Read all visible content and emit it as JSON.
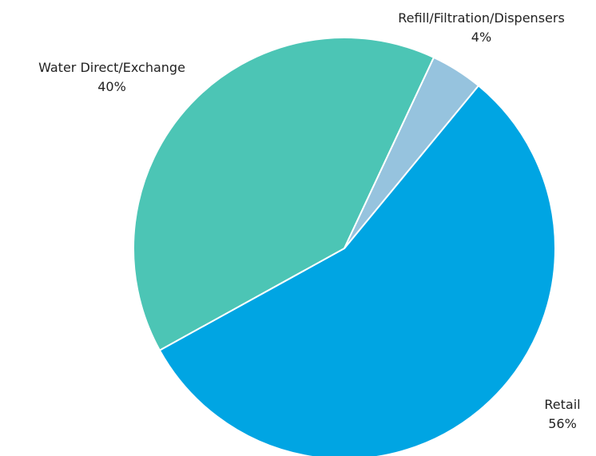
{
  "chart_data": {
    "type": "pie",
    "title": "",
    "slices": [
      {
        "name": "Retail",
        "value": 56,
        "label": "56%",
        "color": "#00a5e3"
      },
      {
        "name": "Water Direct/Exchange",
        "value": 40,
        "label": "40%",
        "color": "#4cc5b5"
      },
      {
        "name": "Refill/Filtration/Dispensers",
        "value": 4,
        "label": "4%",
        "color": "#96c3de"
      }
    ],
    "legend": "none",
    "start_angle_deg": 39.5,
    "direction": "clockwise-from-retail"
  }
}
